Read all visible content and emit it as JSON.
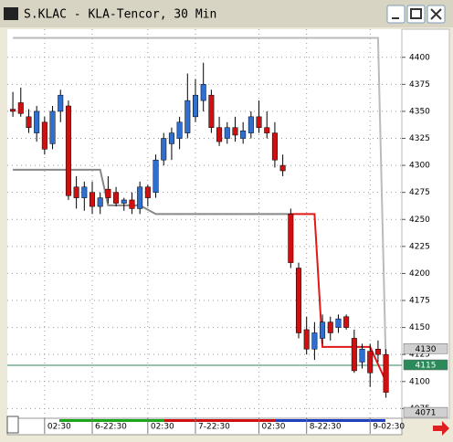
{
  "chart_data": {
    "type": "candlestick",
    "title": "S.KLAC - KLA-Tencor, 30 Min",
    "x": [
      0,
      1,
      2,
      3,
      4,
      5,
      6,
      7,
      8,
      9,
      10,
      11,
      12,
      13,
      14,
      15,
      16,
      17,
      18,
      19,
      20,
      21,
      22,
      23,
      24,
      25,
      26,
      27,
      28,
      29,
      30,
      31,
      32,
      33,
      34,
      35,
      36,
      37,
      38,
      39,
      40,
      41,
      42,
      43,
      44,
      45,
      46,
      47
    ],
    "open": [
      4352,
      4358,
      4345,
      4330,
      4340,
      4320,
      4350,
      4355,
      4280,
      4270,
      4275,
      4262,
      4278,
      4275,
      4265,
      4268,
      4260,
      4280,
      4275,
      4305,
      4320,
      4325,
      4330,
      4345,
      4360,
      4365,
      4335,
      4325,
      4335,
      4325,
      4330,
      4345,
      4335,
      4330,
      4300,
      4255,
      4205,
      4148,
      4130,
      4140,
      4155,
      4150,
      4160,
      4140,
      4118,
      4128,
      4130,
      4125
    ],
    "high": [
      4368,
      4372,
      4352,
      4355,
      4345,
      4355,
      4370,
      4360,
      4290,
      4285,
      4285,
      4275,
      4290,
      4280,
      4270,
      4275,
      4285,
      4282,
      4310,
      4330,
      4335,
      4345,
      4385,
      4380,
      4395,
      4370,
      4345,
      4340,
      4345,
      4340,
      4350,
      4360,
      4350,
      4340,
      4310,
      4260,
      4210,
      4160,
      4155,
      4162,
      4160,
      4162,
      4162,
      4148,
      4135,
      4135,
      4138,
      4130
    ],
    "low": [
      4345,
      4345,
      4330,
      4322,
      4310,
      4315,
      4340,
      4268,
      4260,
      4258,
      4255,
      4255,
      4265,
      4262,
      4258,
      4255,
      4255,
      4262,
      4270,
      4300,
      4305,
      4315,
      4325,
      4340,
      4350,
      4330,
      4318,
      4320,
      4322,
      4320,
      4325,
      4330,
      4325,
      4298,
      4290,
      4205,
      4140,
      4125,
      4120,
      4135,
      4138,
      4145,
      4148,
      4108,
      4112,
      4095,
      4118,
      4085
    ],
    "close": [
      4350,
      4348,
      4335,
      4350,
      4315,
      4350,
      4365,
      4272,
      4270,
      4280,
      4262,
      4270,
      4270,
      4265,
      4268,
      4260,
      4280,
      4270,
      4305,
      4325,
      4330,
      4340,
      4360,
      4365,
      4375,
      4335,
      4322,
      4335,
      4328,
      4332,
      4345,
      4335,
      4330,
      4305,
      4295,
      4210,
      4145,
      4130,
      4145,
      4155,
      4145,
      4158,
      4150,
      4110,
      4130,
      4108,
      4125,
      4090
    ],
    "up_color": "#2f6fd0",
    "down_color": "#d01010",
    "lines": [
      {
        "color": "#888888",
        "x": [
          0,
          11,
          12,
          16,
          18,
          35
        ],
        "values": [
          4296,
          4296,
          4263,
          4263,
          4255,
          4255
        ]
      },
      {
        "color": "#e01818",
        "x": [
          35,
          38,
          39,
          45,
          47
        ],
        "values": [
          4255,
          4255,
          4132,
          4132,
          4100
        ]
      },
      {
        "color": "#bbbbbb",
        "x": [
          0,
          46,
          47
        ],
        "values": [
          4418,
          4418,
          4112
        ]
      }
    ],
    "xlim": [
      -0.7,
      49
    ],
    "xticks": [
      {
        "value": 4,
        "label": "02:30"
      },
      {
        "value": 10,
        "label": "6-22:30"
      },
      {
        "value": 17,
        "label": "02:30"
      },
      {
        "value": 23,
        "label": "7-22:30"
      },
      {
        "value": 31,
        "label": "02:30"
      },
      {
        "value": 37,
        "label": "8-22:30"
      },
      {
        "value": 45,
        "label": "9-02:30"
      }
    ],
    "ylim": [
      4066,
      4426
    ],
    "yticks": [
      4075,
      4100,
      4125,
      4150,
      4175,
      4200,
      4225,
      4250,
      4275,
      4300,
      4325,
      4350,
      4375,
      4400
    ],
    "price_markers": [
      4130,
      4115,
      4071
    ],
    "last_price_line": 4115,
    "last_price_color": "#2a8a5a",
    "grid": true
  }
}
